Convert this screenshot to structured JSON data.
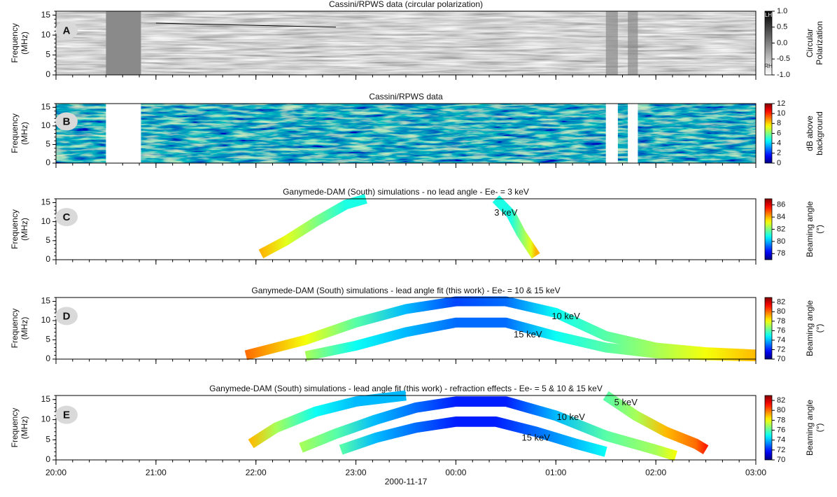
{
  "chart_data": [
    {
      "type": "spectrogram",
      "label": "A",
      "title": "Cassini/RPWS data (circular polarization)",
      "ylabel": [
        "Frequency",
        "(MHz)"
      ],
      "xlim": [
        20,
        27
      ],
      "xticks": [
        20,
        21,
        22,
        23,
        24,
        25,
        26,
        27
      ],
      "ylim": [
        0,
        16
      ],
      "yticks": [
        0,
        5,
        10,
        15
      ],
      "colormap": "gray",
      "clim": [
        -1,
        1
      ],
      "colorbar_label": [
        "Circular",
        "Polarization"
      ],
      "cticks": [
        {
          "value": -1,
          "label": "-1.0"
        },
        -0.5,
        {
          "value": 0,
          "label": "0.0"
        },
        0.5,
        {
          "value": 1,
          "label": "1.0"
        }
      ],
      "colorbar_end_labels": [
        "RH",
        "LH"
      ]
    },
    {
      "type": "spectrogram",
      "label": "B",
      "title": "Cassini/RPWS data",
      "ylabel": [
        "Frequency",
        "(MHz)"
      ],
      "xlim": [
        20,
        27
      ],
      "xticks": [
        20,
        21,
        22,
        23,
        24,
        25,
        26,
        27
      ],
      "ylim": [
        0,
        16
      ],
      "yticks": [
        0,
        5,
        10,
        15
      ],
      "colormap": "jet",
      "clim": [
        0,
        12
      ],
      "colorbar_label": [
        "dB above",
        "background"
      ],
      "cticks": [
        0,
        2,
        4,
        6,
        8,
        10,
        12
      ]
    },
    {
      "type": "arcs",
      "label": "C",
      "title": "Ganymede-DAM (South) simulations - no lead angle - Ee- = 3 keV",
      "ylabel": [
        "Frequency",
        "(MHz)"
      ],
      "xlim": [
        20,
        27
      ],
      "xticks": [
        20,
        21,
        22,
        23,
        24,
        25,
        26,
        27
      ],
      "ylim": [
        0,
        16
      ],
      "yticks": [
        0,
        5,
        10,
        15
      ],
      "colormap": "jet",
      "clim": [
        77,
        87
      ],
      "colorbar_label": [
        "Beaming angle",
        "(°)"
      ],
      "cticks": [
        78,
        80,
        82,
        84,
        86
      ],
      "series": [
        {
          "name": "3 keV",
          "x": [
            22.05,
            22.3,
            22.6,
            22.9,
            23.1,
            23.2,
            24.4,
            24.55,
            24.65,
            24.75,
            24.8
          ],
          "values": [
            1.5,
            5,
            10,
            14.5,
            16,
            null,
            16,
            12,
            7,
            3,
            1
          ],
          "angle": [
            84,
            83,
            82,
            81,
            81,
            null,
            81,
            81,
            82,
            83,
            84
          ]
        }
      ]
    },
    {
      "type": "arcs",
      "label": "D",
      "title": "Ganymede-DAM (South) simulations - lead angle fit (this work) - Ee- = 10 & 15 keV",
      "ylabel": [
        "Frequency",
        "(MHz)"
      ],
      "xlim": [
        20,
        27
      ],
      "xticks": [
        20,
        21,
        22,
        23,
        24,
        25,
        26,
        27
      ],
      "ylim": [
        0,
        16
      ],
      "yticks": [
        0,
        5,
        10,
        15
      ],
      "colormap": "jet",
      "clim": [
        70,
        83
      ],
      "colorbar_label": [
        "Beaming angle",
        "(°)"
      ],
      "cticks": [
        70,
        72,
        74,
        76,
        78,
        80,
        82
      ],
      "series": [
        {
          "name": "10 keV",
          "x": [
            21.9,
            22.5,
            23.0,
            23.5,
            24.0,
            24.5,
            25.0,
            25.5,
            26.0,
            26.5,
            27.0
          ],
          "values": [
            1,
            5,
            9.5,
            13,
            15,
            15,
            12,
            6,
            3,
            1.8,
            1.2
          ],
          "angle": [
            80,
            78,
            76,
            74,
            72.5,
            73,
            75,
            76,
            77,
            78,
            79
          ]
        },
        {
          "name": "15 keV",
          "x": [
            22.5,
            23.0,
            23.5,
            24.0,
            24.5,
            25.0,
            25.5,
            26.0,
            26.5,
            27.0
          ],
          "values": [
            0.8,
            3.5,
            7,
            9.5,
            9.5,
            6,
            3,
            1.5,
            1,
            0.7
          ],
          "angle": [
            77,
            75,
            74,
            73,
            73,
            75,
            76,
            77,
            78,
            79
          ]
        }
      ]
    },
    {
      "type": "arcs",
      "label": "E",
      "title": "Ganymede-DAM (South) simulations - lead angle fit (this work) - refraction effects - Ee- = 5 & 10 & 15 keV",
      "ylabel": [
        "Frequency",
        "(MHz)"
      ],
      "xlim": [
        20,
        27
      ],
      "xlabel": "2000-11-17",
      "xticks": [
        {
          "value": 20,
          "label": "20:00"
        },
        {
          "value": 21,
          "label": "21:00"
        },
        {
          "value": 22,
          "label": "22:00"
        },
        {
          "value": 23,
          "label": "23:00"
        },
        {
          "value": 24,
          "label": "00:00"
        },
        {
          "value": 25,
          "label": "01:00"
        },
        {
          "value": 26,
          "label": "02:00"
        },
        {
          "value": 27,
          "label": "03:00"
        }
      ],
      "ylim": [
        0,
        16
      ],
      "yticks": [
        0,
        5,
        10,
        15
      ],
      "colormap": "jet",
      "clim": [
        70,
        83
      ],
      "colorbar_label": [
        "Beaming angle",
        "(°)"
      ],
      "cticks": [
        70,
        72,
        74,
        76,
        78,
        80,
        82
      ],
      "series": [
        {
          "name": "5 keV",
          "x": [
            21.95,
            22.2,
            22.6,
            23.0,
            23.5,
            23.6,
            25.5,
            25.8,
            26.1,
            26.4,
            26.5
          ],
          "values": [
            4,
            8,
            12,
            14.5,
            16,
            null,
            16,
            11,
            7,
            4,
            2.5
          ],
          "angle": [
            79,
            77,
            75,
            74,
            74,
            null,
            76,
            77,
            79,
            80,
            81
          ]
        },
        {
          "name": "10 keV",
          "x": [
            22.45,
            22.8,
            23.2,
            23.6,
            24.0,
            24.5,
            25.0,
            25.5,
            26.0,
            26.2
          ],
          "values": [
            3,
            6.5,
            10,
            13,
            14.5,
            14.5,
            11,
            6,
            2.5,
            1
          ],
          "angle": [
            77,
            76,
            74,
            73,
            72,
            72,
            74,
            76,
            77,
            78
          ]
        },
        {
          "name": "15 keV",
          "x": [
            22.85,
            23.2,
            23.6,
            24.0,
            24.4,
            24.8,
            25.2,
            25.5
          ],
          "values": [
            2.5,
            5.5,
            8,
            9.5,
            9.5,
            7,
            4,
            2
          ],
          "angle": [
            76,
            74,
            73,
            72,
            72,
            73,
            74,
            75
          ]
        }
      ]
    }
  ]
}
